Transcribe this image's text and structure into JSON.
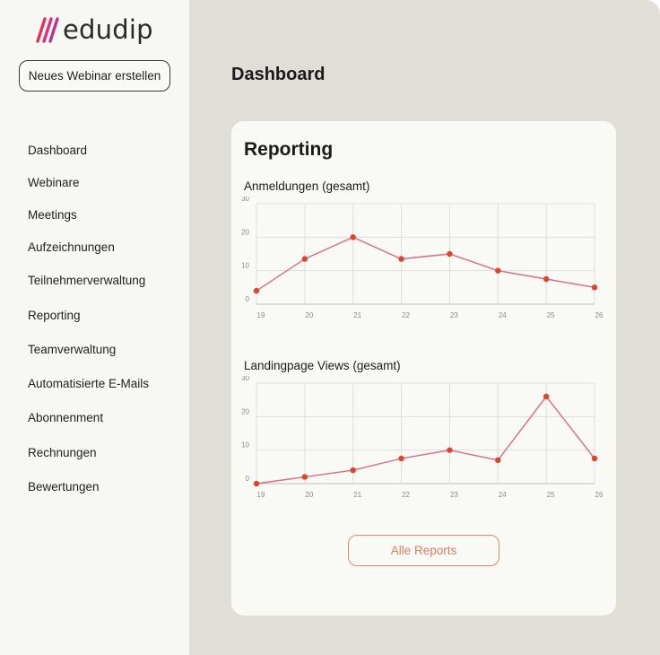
{
  "brand": {
    "name": "edudip",
    "accent": "#e0335a"
  },
  "sidebar": {
    "new_webinar_label": "Neues Webinar erstellen",
    "items": [
      {
        "label": "Dashboard"
      },
      {
        "label": "Webinare"
      },
      {
        "label": "Meetings"
      },
      {
        "label": "Aufzeichnungen"
      },
      {
        "label": "Teilnehmerverwaltung"
      },
      {
        "label": "Reporting"
      },
      {
        "label": "Teamverwaltung"
      },
      {
        "label": "Automatisierte E-Mails"
      },
      {
        "label": "Abonnenment"
      },
      {
        "label": "Rechnungen"
      },
      {
        "label": "Bewertungen"
      }
    ]
  },
  "main": {
    "page_title": "Dashboard",
    "card": {
      "title": "Reporting",
      "button_label": "Alle Reports"
    }
  },
  "chart_data": [
    {
      "type": "line",
      "title": "Anmeldungen (gesamt)",
      "x": [
        "19",
        "20",
        "21",
        "22",
        "23",
        "24",
        "25",
        "26"
      ],
      "values": [
        4,
        13.5,
        20,
        13.5,
        15,
        10,
        7.5,
        5
      ],
      "yticks": [
        0,
        10,
        20,
        30
      ],
      "ylim": [
        0,
        30
      ],
      "grid": true,
      "line_color": "#d86a8a",
      "point_color": "#e0452a"
    },
    {
      "type": "line",
      "title": "Landingpage Views (gesamt)",
      "x": [
        "19",
        "20",
        "21",
        "22",
        "23",
        "24",
        "25",
        "26"
      ],
      "values": [
        0,
        2,
        4,
        7.5,
        10,
        7,
        26,
        7.5
      ],
      "yticks": [
        0,
        10,
        20,
        30
      ],
      "ylim": [
        0,
        30
      ],
      "grid": true,
      "line_color": "#d86a8a",
      "point_color": "#e0452a"
    }
  ]
}
